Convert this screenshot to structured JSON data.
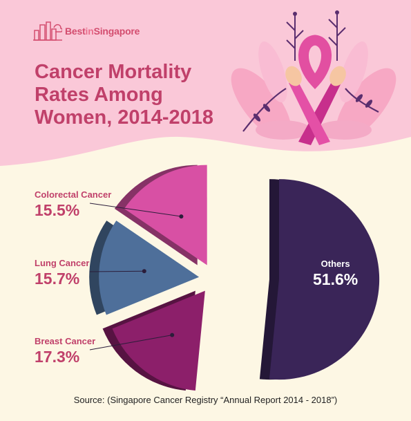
{
  "logo": {
    "brand_main": "Best",
    "brand_in": "in",
    "brand_end": "Singapore"
  },
  "title": "Cancer Mortality Rates Among Women, 2014-2018",
  "source": "Source: (Singapore Cancer Registry “Annual Report 2014 - 2018”)",
  "colors": {
    "header_bg": "#fac8d8",
    "page_bg": "#fdf7e4",
    "accent": "#c0406a"
  },
  "chart_data": {
    "type": "pie",
    "title": "Cancer Mortality Rates Among Women, 2014-2018",
    "slices": [
      {
        "label": "Others",
        "value": 51.6,
        "display": "51.6%",
        "color": "#3a2558"
      },
      {
        "label": "Breast Cancer",
        "value": 17.3,
        "display": "17.3%",
        "color": "#8c1f6a"
      },
      {
        "label": "Lung Cancer",
        "value": 15.7,
        "display": "15.7%",
        "color": "#4e6f9a"
      },
      {
        "label": "Colorectal Cancer",
        "value": 15.5,
        "display": "15.5%",
        "color": "#d850a4"
      }
    ],
    "exploded": true,
    "style": "3d"
  }
}
